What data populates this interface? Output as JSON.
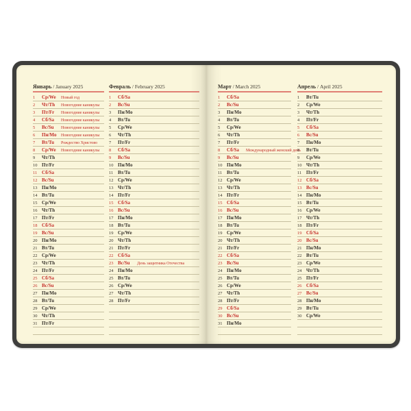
{
  "photo": {
    "background": "#ffffff"
  },
  "notebook": {
    "colors": {
      "cover": "#3e3e3c",
      "page": "#faf6db",
      "rule": "#c6bf9f",
      "red": "#c42f2a",
      "dark": "#37322b",
      "underline": "#e07f74"
    }
  },
  "row_format": "each day entry is [day_number, weekday_ru_en, is_red_day, holiday_note]",
  "months": [
    {
      "title_bold": "Январь",
      "title_rest": " / January 2025",
      "blank_rows": 1,
      "days": [
        [
          "1",
          "Ср/We",
          1,
          "Новый год"
        ],
        [
          "2",
          "Чт/Th",
          1,
          "Новогодние каникулы"
        ],
        [
          "3",
          "Пт/Fr",
          1,
          "Новогодние каникулы"
        ],
        [
          "4",
          "Сб/Sa",
          1,
          "Новогодние каникулы"
        ],
        [
          "5",
          "Вс/Su",
          1,
          "Новогодние каникулы"
        ],
        [
          "6",
          "Пн/Mo",
          1,
          "Новогодние каникулы"
        ],
        [
          "7",
          "Вт/Tu",
          1,
          "Рождество Христово"
        ],
        [
          "8",
          "Ср/We",
          1,
          "Новогодние каникулы"
        ],
        [
          "9",
          "Чт/Th",
          0,
          ""
        ],
        [
          "10",
          "Пт/Fr",
          0,
          ""
        ],
        [
          "11",
          "Сб/Sa",
          1,
          ""
        ],
        [
          "12",
          "Вс/Su",
          1,
          ""
        ],
        [
          "13",
          "Пн/Mo",
          0,
          ""
        ],
        [
          "14",
          "Вт/Tu",
          0,
          ""
        ],
        [
          "15",
          "Ср/We",
          0,
          ""
        ],
        [
          "16",
          "Чт/Th",
          0,
          ""
        ],
        [
          "17",
          "Пт/Fr",
          0,
          ""
        ],
        [
          "18",
          "Сб/Sa",
          1,
          ""
        ],
        [
          "19",
          "Вс/Su",
          1,
          ""
        ],
        [
          "20",
          "Пн/Mo",
          0,
          ""
        ],
        [
          "21",
          "Вт/Tu",
          0,
          ""
        ],
        [
          "22",
          "Ср/We",
          0,
          ""
        ],
        [
          "23",
          "Чт/Th",
          0,
          ""
        ],
        [
          "24",
          "Пт/Fr",
          0,
          ""
        ],
        [
          "25",
          "Сб/Sa",
          1,
          ""
        ],
        [
          "26",
          "Вс/Su",
          1,
          ""
        ],
        [
          "27",
          "Пн/Mo",
          0,
          ""
        ],
        [
          "28",
          "Вт/Tu",
          0,
          ""
        ],
        [
          "29",
          "Ср/We",
          0,
          ""
        ],
        [
          "30",
          "Чт/Th",
          0,
          ""
        ],
        [
          "31",
          "Пт/Fr",
          0,
          ""
        ]
      ]
    },
    {
      "title_bold": "Февраль",
      "title_rest": " / February 2025",
      "blank_rows": 4,
      "days": [
        [
          "1",
          "Сб/Sa",
          1,
          ""
        ],
        [
          "2",
          "Вс/Su",
          1,
          ""
        ],
        [
          "3",
          "Пн/Mo",
          0,
          ""
        ],
        [
          "4",
          "Вт/Tu",
          0,
          ""
        ],
        [
          "5",
          "Ср/We",
          0,
          ""
        ],
        [
          "6",
          "Чт/Th",
          0,
          ""
        ],
        [
          "7",
          "Пт/Fr",
          0,
          ""
        ],
        [
          "8",
          "Сб/Sa",
          1,
          ""
        ],
        [
          "9",
          "Вс/Su",
          1,
          ""
        ],
        [
          "10",
          "Пн/Mo",
          0,
          ""
        ],
        [
          "11",
          "Вт/Tu",
          0,
          ""
        ],
        [
          "12",
          "Ср/We",
          0,
          ""
        ],
        [
          "13",
          "Чт/Th",
          0,
          ""
        ],
        [
          "14",
          "Пт/Fr",
          0,
          ""
        ],
        [
          "15",
          "Сб/Sa",
          1,
          ""
        ],
        [
          "16",
          "Вс/Su",
          1,
          ""
        ],
        [
          "17",
          "Пн/Mo",
          0,
          ""
        ],
        [
          "18",
          "Вт/Tu",
          0,
          ""
        ],
        [
          "19",
          "Ср/We",
          0,
          ""
        ],
        [
          "20",
          "Чт/Th",
          0,
          ""
        ],
        [
          "21",
          "Пт/Fr",
          0,
          ""
        ],
        [
          "22",
          "Сб/Sa",
          1,
          ""
        ],
        [
          "23",
          "Вс/Su",
          1,
          "День защитника Отечества"
        ],
        [
          "24",
          "Пн/Mo",
          0,
          ""
        ],
        [
          "25",
          "Вт/Tu",
          0,
          ""
        ],
        [
          "26",
          "Ср/We",
          0,
          ""
        ],
        [
          "27",
          "Чт/Th",
          0,
          ""
        ],
        [
          "28",
          "Пт/Fr",
          0,
          ""
        ]
      ]
    },
    {
      "title_bold": "Март",
      "title_rest": " / March 2025",
      "blank_rows": 1,
      "days": [
        [
          "1",
          "Сб/Sa",
          1,
          ""
        ],
        [
          "2",
          "Вс/Su",
          1,
          ""
        ],
        [
          "3",
          "Пн/Mo",
          0,
          ""
        ],
        [
          "4",
          "Вт/Tu",
          0,
          ""
        ],
        [
          "5",
          "Ср/We",
          0,
          ""
        ],
        [
          "6",
          "Чт/Th",
          0,
          ""
        ],
        [
          "7",
          "Пт/Fr",
          0,
          ""
        ],
        [
          "8",
          "Сб/Sa",
          1,
          "Международный женский день"
        ],
        [
          "9",
          "Вс/Su",
          1,
          ""
        ],
        [
          "10",
          "Пн/Mo",
          0,
          ""
        ],
        [
          "11",
          "Вт/Tu",
          0,
          ""
        ],
        [
          "12",
          "Ср/We",
          0,
          ""
        ],
        [
          "13",
          "Чт/Th",
          0,
          ""
        ],
        [
          "14",
          "Пт/Fr",
          0,
          ""
        ],
        [
          "15",
          "Сб/Sa",
          1,
          ""
        ],
        [
          "16",
          "Вс/Su",
          1,
          ""
        ],
        [
          "17",
          "Пн/Mo",
          0,
          ""
        ],
        [
          "18",
          "Вт/Tu",
          0,
          ""
        ],
        [
          "19",
          "Ср/We",
          0,
          ""
        ],
        [
          "20",
          "Чт/Th",
          0,
          ""
        ],
        [
          "21",
          "Пт/Fr",
          0,
          ""
        ],
        [
          "22",
          "Сб/Sa",
          1,
          ""
        ],
        [
          "23",
          "Вс/Su",
          1,
          ""
        ],
        [
          "24",
          "Пн/Mo",
          0,
          ""
        ],
        [
          "25",
          "Вт/Tu",
          0,
          ""
        ],
        [
          "26",
          "Ср/We",
          0,
          ""
        ],
        [
          "27",
          "Чт/Th",
          0,
          ""
        ],
        [
          "28",
          "Пт/Fr",
          0,
          ""
        ],
        [
          "29",
          "Сб/Sa",
          1,
          ""
        ],
        [
          "30",
          "Вс/Su",
          1,
          ""
        ],
        [
          "31",
          "Пн/Mo",
          0,
          ""
        ]
      ]
    },
    {
      "title_bold": "Апрель",
      "title_rest": " / April 2025",
      "blank_rows": 2,
      "days": [
        [
          "1",
          "Вт/Tu",
          0,
          ""
        ],
        [
          "2",
          "Ср/We",
          0,
          ""
        ],
        [
          "3",
          "Чт/Th",
          0,
          ""
        ],
        [
          "4",
          "Пт/Fr",
          0,
          ""
        ],
        [
          "5",
          "Сб/Sa",
          1,
          ""
        ],
        [
          "6",
          "Вс/Su",
          1,
          ""
        ],
        [
          "7",
          "Пн/Mo",
          0,
          ""
        ],
        [
          "8",
          "Вт/Tu",
          0,
          ""
        ],
        [
          "9",
          "Ср/We",
          0,
          ""
        ],
        [
          "10",
          "Чт/Th",
          0,
          ""
        ],
        [
          "11",
          "Пт/Fr",
          0,
          ""
        ],
        [
          "12",
          "Сб/Sa",
          1,
          ""
        ],
        [
          "13",
          "Вс/Su",
          1,
          ""
        ],
        [
          "14",
          "Пн/Mo",
          0,
          ""
        ],
        [
          "15",
          "Вт/Tu",
          0,
          ""
        ],
        [
          "16",
          "Ср/We",
          0,
          ""
        ],
        [
          "17",
          "Чт/Th",
          0,
          ""
        ],
        [
          "18",
          "Пт/Fr",
          0,
          ""
        ],
        [
          "19",
          "Сб/Sa",
          1,
          ""
        ],
        [
          "20",
          "Вс/Su",
          1,
          ""
        ],
        [
          "21",
          "Пн/Mo",
          0,
          ""
        ],
        [
          "22",
          "Вт/Tu",
          0,
          ""
        ],
        [
          "23",
          "Ср/We",
          0,
          ""
        ],
        [
          "24",
          "Чт/Th",
          0,
          ""
        ],
        [
          "25",
          "Пт/Fr",
          0,
          ""
        ],
        [
          "26",
          "Сб/Sa",
          1,
          ""
        ],
        [
          "27",
          "Вс/Su",
          1,
          ""
        ],
        [
          "28",
          "Пн/Mo",
          0,
          ""
        ],
        [
          "29",
          "Вт/Tu",
          0,
          ""
        ],
        [
          "30",
          "Ср/We",
          0,
          ""
        ]
      ]
    }
  ]
}
